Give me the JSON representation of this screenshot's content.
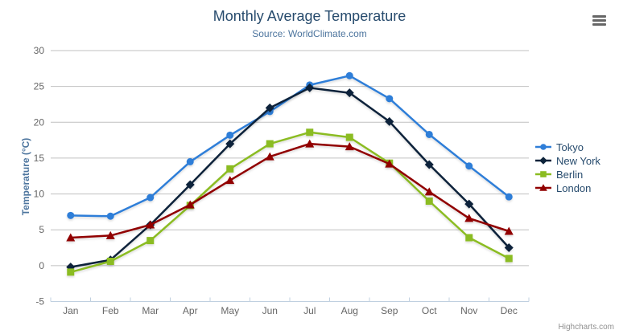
{
  "chart_data": {
    "type": "line",
    "title": "Monthly Average Temperature",
    "subtitle": "Source: WorldClimate.com",
    "categories": [
      "Jan",
      "Feb",
      "Mar",
      "Apr",
      "May",
      "Jun",
      "Jul",
      "Aug",
      "Sep",
      "Oct",
      "Nov",
      "Dec"
    ],
    "series": [
      {
        "name": "Tokyo",
        "color": "#2f7ed8",
        "marker": "circle",
        "values": [
          7.0,
          6.9,
          9.5,
          14.5,
          18.2,
          21.5,
          25.2,
          26.5,
          23.3,
          18.3,
          13.9,
          9.6
        ]
      },
      {
        "name": "New York",
        "color": "#0d233a",
        "marker": "diamond",
        "values": [
          -0.2,
          0.8,
          5.7,
          11.3,
          17.0,
          22.0,
          24.8,
          24.1,
          20.1,
          14.1,
          8.6,
          2.5
        ]
      },
      {
        "name": "Berlin",
        "color": "#8bbc21",
        "marker": "square",
        "values": [
          -0.9,
          0.6,
          3.5,
          8.4,
          13.5,
          17.0,
          18.6,
          17.9,
          14.3,
          9.0,
          3.9,
          1.0
        ]
      },
      {
        "name": "London",
        "color": "#910000",
        "marker": "triangle",
        "values": [
          3.9,
          4.2,
          5.7,
          8.5,
          11.9,
          15.2,
          17.0,
          16.6,
          14.2,
          10.3,
          6.6,
          4.8
        ]
      }
    ],
    "xlabel": "",
    "ylabel": "Temperature (°C)",
    "ylim": [
      -5,
      30
    ],
    "ytick_step": 5,
    "grid": true,
    "legend_position": "right"
  },
  "theme": {
    "title_color": "#274b6d",
    "subtitle_color": "#4d759e",
    "axis_title_color": "#4d759e",
    "label_color": "#666666",
    "grid_color": "#c0c0c0",
    "axis_line_color": "#c0d0e0",
    "legend_text_color": "#274b6d",
    "export_icon_color": "#666666",
    "credit_color": "#909090",
    "background": "#ffffff"
  },
  "export_menu": {
    "icon": "hamburger-icon"
  },
  "credit": {
    "label": "Highcharts.com"
  }
}
